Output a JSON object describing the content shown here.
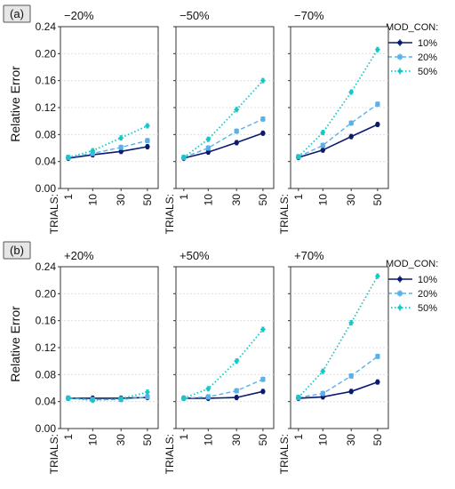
{
  "figure": {
    "rows": [
      {
        "label": "(a)",
        "legend_title": "MOD_CON:",
        "legend_entries": [
          "10%",
          "20%",
          "50%"
        ]
      },
      {
        "label": "(b)",
        "legend_title": "MOD_CON:",
        "legend_entries": [
          "10%",
          "20%",
          "50%"
        ]
      }
    ],
    "ylabel": "Relative Error",
    "xlabel_prefix": "TRIALS:",
    "colors": {
      "10%": "#0a1a6e",
      "20%": "#5ab0e8",
      "50%": "#14c8c8"
    }
  },
  "chart_data": [
    {
      "type": "line",
      "row": 0,
      "col": 0,
      "title": "−20%",
      "categories": [
        "1",
        "10",
        "30",
        "50"
      ],
      "ylim": [
        0,
        0.24
      ],
      "yticks": [
        "0.00",
        "0.04",
        "0.08",
        "0.12",
        "0.16",
        "0.20",
        "0.24"
      ],
      "series": [
        {
          "name": "10%",
          "values": [
            0.045,
            0.05,
            0.055,
            0.062
          ]
        },
        {
          "name": "20%",
          "values": [
            0.046,
            0.052,
            0.061,
            0.071
          ]
        },
        {
          "name": "50%",
          "values": [
            0.046,
            0.056,
            0.075,
            0.093
          ]
        }
      ]
    },
    {
      "type": "line",
      "row": 0,
      "col": 1,
      "title": "−50%",
      "categories": [
        "1",
        "10",
        "30",
        "50"
      ],
      "ylim": [
        0,
        0.24
      ],
      "yticks": [
        "0.00",
        "0.04",
        "0.08",
        "0.12",
        "0.16",
        "0.20",
        "0.24"
      ],
      "series": [
        {
          "name": "10%",
          "values": [
            0.045,
            0.054,
            0.068,
            0.082
          ]
        },
        {
          "name": "20%",
          "values": [
            0.046,
            0.06,
            0.085,
            0.103
          ]
        },
        {
          "name": "50%",
          "values": [
            0.046,
            0.073,
            0.117,
            0.16
          ]
        }
      ]
    },
    {
      "type": "line",
      "row": 0,
      "col": 2,
      "title": "−70%",
      "categories": [
        "1",
        "10",
        "30",
        "50"
      ],
      "ylim": [
        0,
        0.24
      ],
      "yticks": [
        "0.00",
        "0.04",
        "0.08",
        "0.12",
        "0.16",
        "0.20",
        "0.24"
      ],
      "series": [
        {
          "name": "10%",
          "values": [
            0.046,
            0.057,
            0.077,
            0.095
          ]
        },
        {
          "name": "20%",
          "values": [
            0.047,
            0.064,
            0.097,
            0.125
          ]
        },
        {
          "name": "50%",
          "values": [
            0.047,
            0.083,
            0.143,
            0.206
          ]
        }
      ]
    },
    {
      "type": "line",
      "row": 1,
      "col": 0,
      "title": "+20%",
      "categories": [
        "1",
        "10",
        "30",
        "50"
      ],
      "ylim": [
        0,
        0.24
      ],
      "yticks": [
        "0.00",
        "0.04",
        "0.08",
        "0.12",
        "0.16",
        "0.20",
        "0.24"
      ],
      "series": [
        {
          "name": "10%",
          "values": [
            0.045,
            0.045,
            0.045,
            0.046
          ]
        },
        {
          "name": "20%",
          "values": [
            0.045,
            0.043,
            0.043,
            0.047
          ]
        },
        {
          "name": "50%",
          "values": [
            0.045,
            0.042,
            0.044,
            0.054
          ]
        }
      ]
    },
    {
      "type": "line",
      "row": 1,
      "col": 1,
      "title": "+50%",
      "categories": [
        "1",
        "10",
        "30",
        "50"
      ],
      "ylim": [
        0,
        0.24
      ],
      "yticks": [
        "0.00",
        "0.04",
        "0.08",
        "0.12",
        "0.16",
        "0.20",
        "0.24"
      ],
      "series": [
        {
          "name": "10%",
          "values": [
            0.045,
            0.045,
            0.046,
            0.055
          ]
        },
        {
          "name": "20%",
          "values": [
            0.045,
            0.047,
            0.056,
            0.073
          ]
        },
        {
          "name": "50%",
          "values": [
            0.045,
            0.059,
            0.1,
            0.147
          ]
        }
      ]
    },
    {
      "type": "line",
      "row": 1,
      "col": 2,
      "title": "+70%",
      "categories": [
        "1",
        "10",
        "30",
        "50"
      ],
      "ylim": [
        0,
        0.24
      ],
      "yticks": [
        "0.00",
        "0.04",
        "0.08",
        "0.12",
        "0.16",
        "0.20",
        "0.24"
      ],
      "series": [
        {
          "name": "10%",
          "values": [
            0.045,
            0.047,
            0.055,
            0.069
          ]
        },
        {
          "name": "20%",
          "values": [
            0.046,
            0.052,
            0.078,
            0.107
          ]
        },
        {
          "name": "50%",
          "values": [
            0.046,
            0.085,
            0.157,
            0.226
          ]
        }
      ]
    }
  ]
}
